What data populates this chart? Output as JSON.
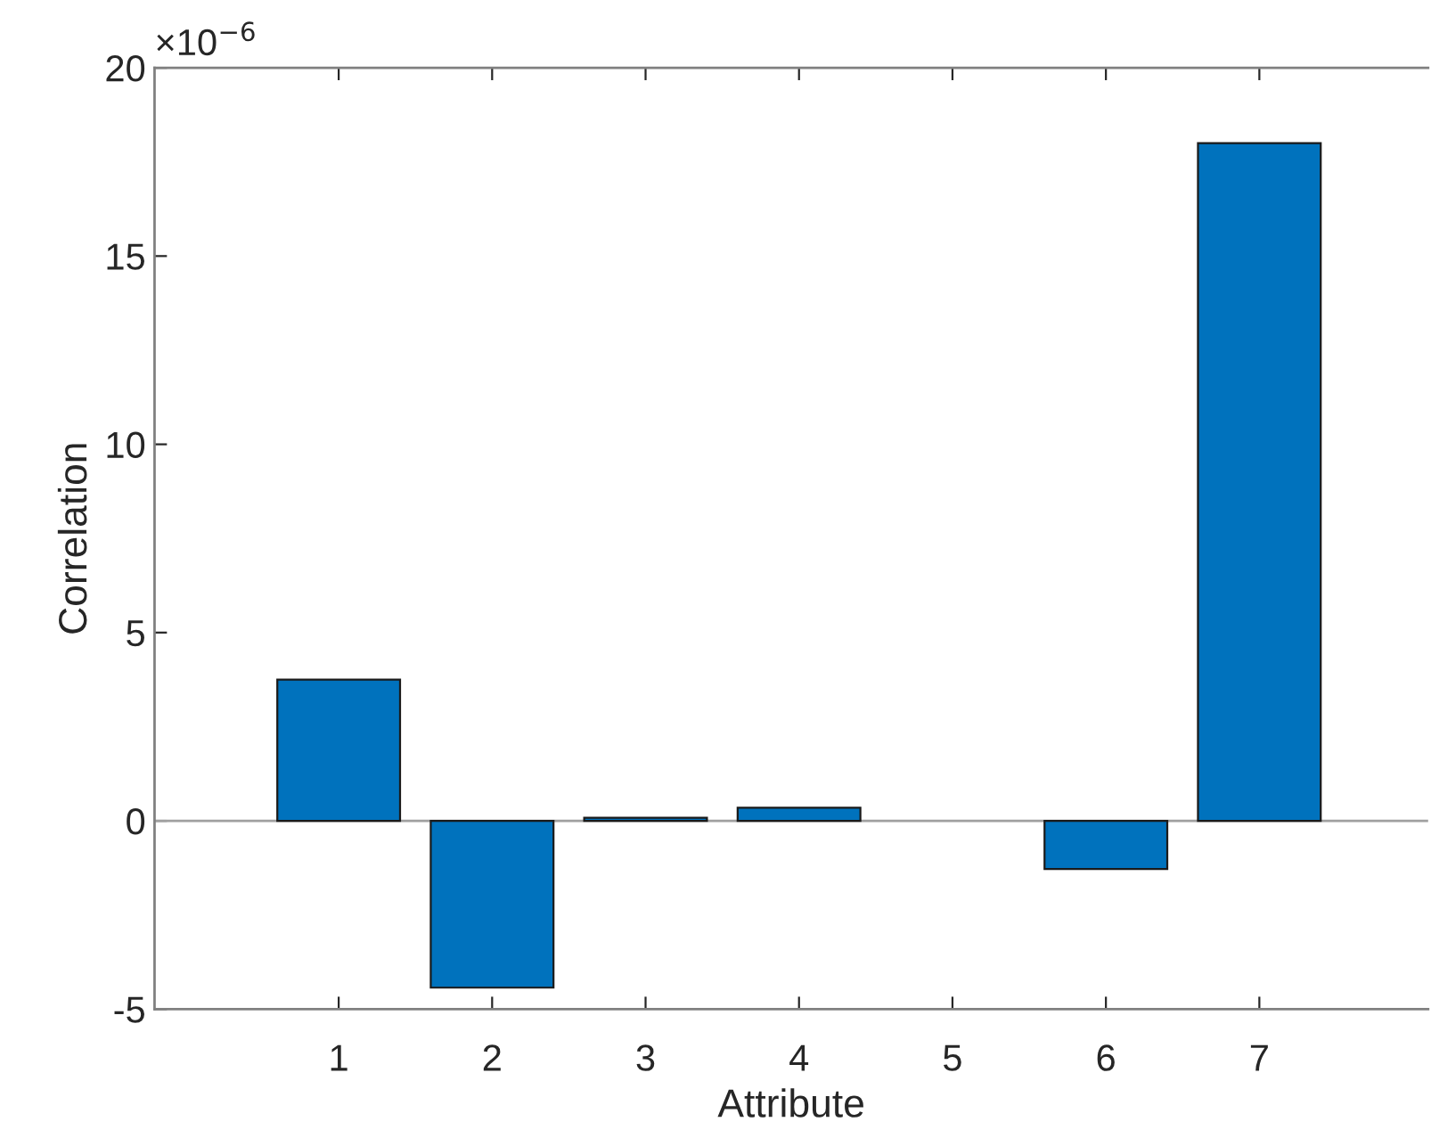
{
  "chart_data": {
    "type": "bar",
    "xlabel": "Attribute",
    "ylabel": "Correlation",
    "annotations": [
      "×10$^{−6}$"
    ],
    "categories": [
      "1",
      "2",
      "3",
      "4",
      "5",
      "6",
      "7"
    ],
    "values": [
      3.75,
      -4.43,
      0.08,
      0.35,
      null,
      -1.28,
      18.0
    ],
    "color": "#0072bd",
    "ylim": [
      -5,
      20
    ],
    "yticks": [
      -5,
      0,
      5,
      10,
      15,
      20
    ],
    "ref_lines": [
      {
        "axis": "y",
        "value": 0,
        "color": "#a0a0a0"
      }
    ],
    "grid": false
  }
}
